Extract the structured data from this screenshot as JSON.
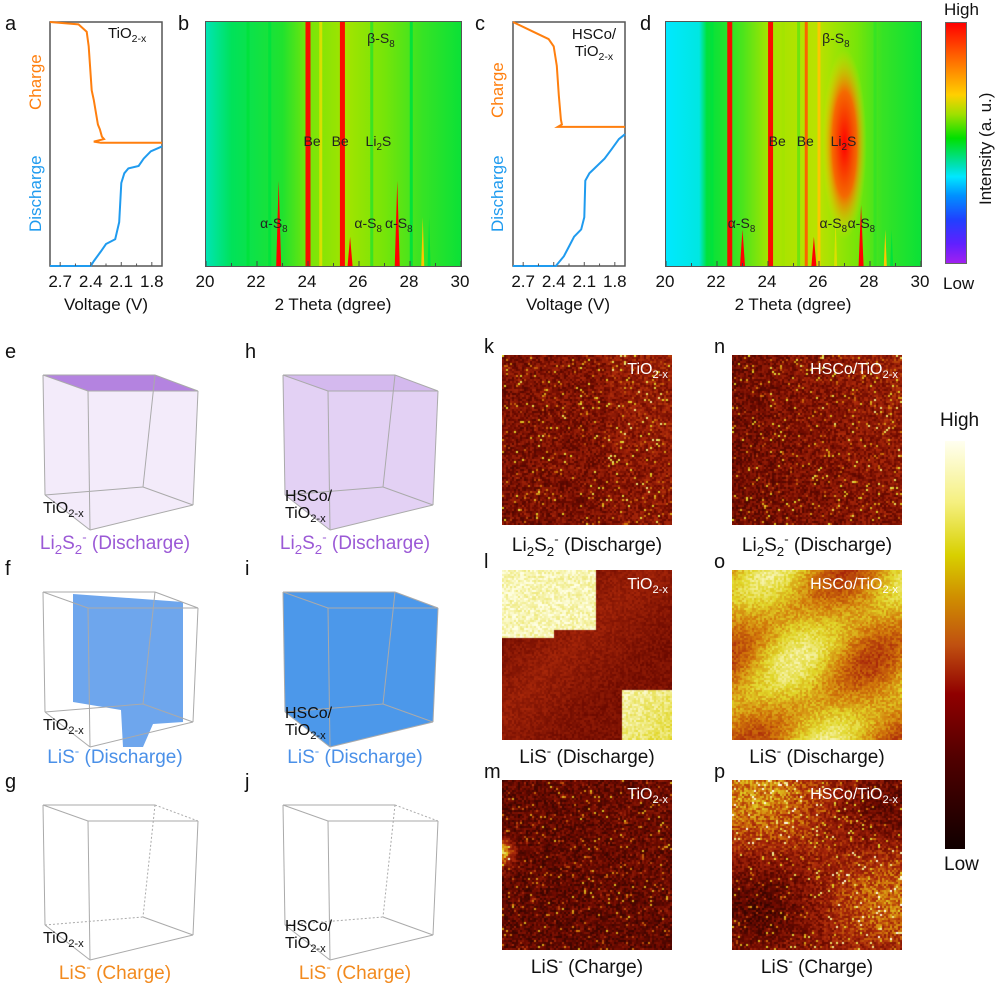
{
  "figure": {
    "panel_letters": [
      "a",
      "b",
      "c",
      "d",
      "e",
      "f",
      "g",
      "h",
      "i",
      "j",
      "k",
      "l",
      "m",
      "p",
      "n",
      "o"
    ],
    "colors": {
      "charge": "#ff7f0e",
      "discharge": "#1f9bef",
      "li2s2_purple": "#9b59d6",
      "lis_blue": "#4a90e8",
      "lis_charge_orange": "#f28a1e"
    }
  },
  "chart_data": [
    {
      "id": "a",
      "type": "line",
      "title": "TiO2-x",
      "xlabel": "Voltage (V)",
      "x_ticks": [
        "2.7",
        "2.4",
        "2.1",
        "1.8"
      ],
      "xlim": [
        2.8,
        1.7
      ],
      "x_reversed": true,
      "y_segment_labels": [
        "Charge",
        "Discharge"
      ],
      "series": [
        {
          "name": "Charge",
          "color": "#ff7f0e",
          "points": [
            [
              2.8,
              1.0
            ],
            [
              2.52,
              0.99
            ],
            [
              2.44,
              0.96
            ],
            [
              2.42,
              0.9
            ],
            [
              2.39,
              0.72
            ],
            [
              2.37,
              0.68
            ],
            [
              2.33,
              0.58
            ],
            [
              2.31,
              0.56
            ],
            [
              2.29,
              0.53
            ],
            [
              2.27,
              0.52
            ],
            [
              2.37,
              0.51
            ],
            [
              2.3,
              0.505
            ],
            [
              1.7,
              0.505
            ]
          ]
        },
        {
          "name": "Discharge",
          "color": "#1f9bef",
          "points": [
            [
              1.7,
              0.49
            ],
            [
              1.81,
              0.47
            ],
            [
              1.88,
              0.44
            ],
            [
              1.93,
              0.41
            ],
            [
              2.03,
              0.4
            ],
            [
              2.07,
              0.38
            ],
            [
              2.1,
              0.34
            ],
            [
              2.12,
              0.18
            ],
            [
              2.16,
              0.11
            ],
            [
              2.25,
              0.09
            ],
            [
              2.3,
              0.06
            ],
            [
              2.37,
              0.02
            ],
            [
              2.4,
              0.0
            ],
            [
              2.8,
              0.0
            ]
          ]
        }
      ]
    },
    {
      "id": "b",
      "type": "heatmap",
      "xlabel": "2 Theta (dgree)",
      "xlim": [
        20,
        30
      ],
      "x_ticks": [
        "20",
        "22",
        "24",
        "26",
        "28",
        "30"
      ],
      "colormap": "rainbow",
      "annotations": [
        {
          "text": "β-S8",
          "x": 26.9,
          "row": "top"
        },
        {
          "text": "Be",
          "x": 24.2,
          "row": "mid"
        },
        {
          "text": "Be",
          "x": 25.3,
          "row": "mid"
        },
        {
          "text": "Li2S",
          "x": 26.8,
          "row": "mid"
        },
        {
          "text": "α-S8",
          "x": 22.7,
          "row": "bottom"
        },
        {
          "text": "α-S8",
          "x": 26.4,
          "row": "bottom"
        },
        {
          "text": "α-S8",
          "x": 27.6,
          "row": "bottom"
        }
      ],
      "lines": [
        {
          "x": 21.65,
          "intensity": 0.55,
          "extent": 1.0
        },
        {
          "x": 22.5,
          "intensity": 0.55,
          "extent": 1.0
        },
        {
          "x": 22.85,
          "intensity": 1.0,
          "extent": 0.35
        },
        {
          "x": 24.0,
          "intensity": 1.0,
          "extent": 1.0
        },
        {
          "x": 24.5,
          "intensity": 0.75,
          "extent": 1.0
        },
        {
          "x": 25.35,
          "intensity": 1.0,
          "extent": 1.0
        },
        {
          "x": 25.65,
          "intensity": 1.0,
          "extent": 0.12
        },
        {
          "x": 26.5,
          "intensity": 0.6,
          "extent": 1.0
        },
        {
          "x": 27.5,
          "intensity": 1.0,
          "extent": 0.35
        },
        {
          "x": 28.05,
          "intensity": 0.55,
          "extent": 1.0
        },
        {
          "x": 28.5,
          "intensity": 0.8,
          "extent": 0.2
        },
        {
          "x": 28.75,
          "intensity": 0.55,
          "extent": 0.2
        }
      ]
    },
    {
      "id": "c",
      "type": "line",
      "title": "HSCo/TiO2-x",
      "xlabel": "Voltage (V)",
      "x_ticks": [
        "2.7",
        "2.4",
        "2.1",
        "1.8"
      ],
      "xlim": [
        2.8,
        1.7
      ],
      "x_reversed": true,
      "y_segment_labels": [
        "Charge",
        "Discharge"
      ],
      "series": [
        {
          "name": "Charge",
          "color": "#ff7f0e",
          "points": [
            [
              2.8,
              1.0
            ],
            [
              2.6,
              0.96
            ],
            [
              2.45,
              0.93
            ],
            [
              2.4,
              0.9
            ],
            [
              2.37,
              0.82
            ],
            [
              2.35,
              0.7
            ],
            [
              2.33,
              0.6
            ],
            [
              2.32,
              0.58
            ],
            [
              2.36,
              0.57
            ],
            [
              1.7,
              0.57
            ]
          ]
        },
        {
          "name": "Discharge",
          "color": "#1f9bef",
          "points": [
            [
              1.7,
              0.54
            ],
            [
              1.76,
              0.52
            ],
            [
              1.83,
              0.48
            ],
            [
              1.9,
              0.44
            ],
            [
              2.0,
              0.4
            ],
            [
              2.05,
              0.38
            ],
            [
              2.09,
              0.35
            ],
            [
              2.1,
              0.2
            ],
            [
              2.13,
              0.15
            ],
            [
              2.2,
              0.12
            ],
            [
              2.25,
              0.08
            ],
            [
              2.3,
              0.04
            ],
            [
              2.38,
              0.0
            ],
            [
              2.8,
              0.0
            ]
          ]
        }
      ]
    },
    {
      "id": "d",
      "type": "heatmap",
      "xlabel": "2 Theta (dgree)",
      "xlim": [
        20,
        30
      ],
      "x_ticks": [
        "20",
        "22",
        "24",
        "26",
        "28",
        "30"
      ],
      "colormap": "rainbow",
      "colorbar": {
        "label": "Intensity (a. u.)",
        "high": "High",
        "low": "Low"
      },
      "annotations": [
        {
          "text": "β-S8",
          "x": 26.7,
          "row": "top"
        },
        {
          "text": "Be",
          "x": 24.4,
          "row": "mid"
        },
        {
          "text": "Be",
          "x": 25.5,
          "row": "mid"
        },
        {
          "text": "Li2S",
          "x": 27.0,
          "row": "mid"
        },
        {
          "text": "α-S8",
          "x": 23.0,
          "row": "bottom"
        },
        {
          "text": "α-S8",
          "x": 26.6,
          "row": "bottom"
        },
        {
          "text": "α-S8",
          "x": 27.7,
          "row": "bottom"
        }
      ],
      "lines": [
        {
          "x": 21.8,
          "intensity": 0.55,
          "extent": 1.0
        },
        {
          "x": 22.5,
          "intensity": 1.0,
          "extent": 1.0
        },
        {
          "x": 23.0,
          "intensity": 1.0,
          "extent": 0.15
        },
        {
          "x": 24.1,
          "intensity": 1.0,
          "extent": 1.0
        },
        {
          "x": 24.6,
          "intensity": 0.7,
          "extent": 1.0
        },
        {
          "x": 25.2,
          "intensity": 0.65,
          "extent": 1.0
        },
        {
          "x": 25.5,
          "intensity": 0.9,
          "extent": 1.0
        },
        {
          "x": 25.8,
          "intensity": 1.0,
          "extent": 0.12
        },
        {
          "x": 26.0,
          "intensity": 0.8,
          "extent": 1.0
        },
        {
          "x": 26.65,
          "intensity": 0.75,
          "extent": 0.2
        },
        {
          "x": 27.65,
          "intensity": 1.0,
          "extent": 0.25
        },
        {
          "x": 28.2,
          "intensity": 0.6,
          "extent": 1.0
        },
        {
          "x": 28.6,
          "intensity": 0.8,
          "extent": 0.15
        },
        {
          "x": 28.85,
          "intensity": 0.55,
          "extent": 0.15
        }
      ],
      "hotspot": {
        "x": 27.0,
        "y_center": 0.5,
        "note": "Li2S broad elliptical peak"
      }
    }
  ],
  "labels": {
    "charge": "Charge",
    "discharge": "Discharge",
    "voltage": "Voltage (V)",
    "two_theta": "2 Theta (dgree)",
    "intensity": "Intensity (a. u.)",
    "high": "High",
    "low": "Low",
    "tio2": "TiO",
    "sub_2x": "2-x",
    "hsco_slash": "HSCo/",
    "hsco_tio": "HSCo/TiO",
    "li": "Li",
    "s": "S",
    "sub2": "2",
    "sub8": "8",
    "sup_minus": "-",
    "discharge_paren": " (Discharge)",
    "charge_paren": " (Charge)",
    "lis": "LiS",
    "be": "Be",
    "beta": "β-S",
    "alpha": "α-S"
  },
  "cubes": [
    {
      "id": "e",
      "material": "TiO2-x",
      "species": "Li2S2-",
      "state": "Discharge",
      "color": "#9b59d6"
    },
    {
      "id": "f",
      "material": "TiO2-x",
      "species": "LiS-",
      "state": "Discharge",
      "color": "#4a90e8"
    },
    {
      "id": "g",
      "material": "TiO2-x",
      "species": "LiS-",
      "state": "Charge",
      "color": "#f28a1e"
    },
    {
      "id": "h",
      "material": "HSCo/TiO2-x",
      "species": "Li2S2-",
      "state": "Discharge",
      "color": "#9b59d6"
    },
    {
      "id": "i",
      "material": "HSCo/TiO2-x",
      "species": "LiS-",
      "state": "Discharge",
      "color": "#4a90e8"
    },
    {
      "id": "j",
      "material": "HSCo/TiO2-x",
      "species": "LiS-",
      "state": "Charge",
      "color": "#f28a1e"
    }
  ],
  "maps": [
    {
      "id": "k",
      "material": "TiO2-x",
      "species": "Li2S2-",
      "state": "Discharge",
      "mean_intensity": 0.3
    },
    {
      "id": "l",
      "material": "TiO2-x",
      "species": "LiS-",
      "state": "Discharge",
      "mean_intensity": 0.6
    },
    {
      "id": "m",
      "material": "TiO2-x",
      "species": "LiS-",
      "state": "Charge",
      "mean_intensity": 0.25
    },
    {
      "id": "n",
      "material": "HSCo/TiO2-x",
      "species": "Li2S2-",
      "state": "Discharge",
      "mean_intensity": 0.3
    },
    {
      "id": "o",
      "material": "HSCo/TiO2-x",
      "species": "LiS-",
      "state": "Discharge",
      "mean_intensity": 0.8
    },
    {
      "id": "p",
      "material": "HSCo/TiO2-x",
      "species": "LiS-",
      "state": "Charge",
      "mean_intensity": 0.45
    }
  ],
  "map_colorbar": {
    "high": "High",
    "low": "Low",
    "colormap": "hot"
  }
}
